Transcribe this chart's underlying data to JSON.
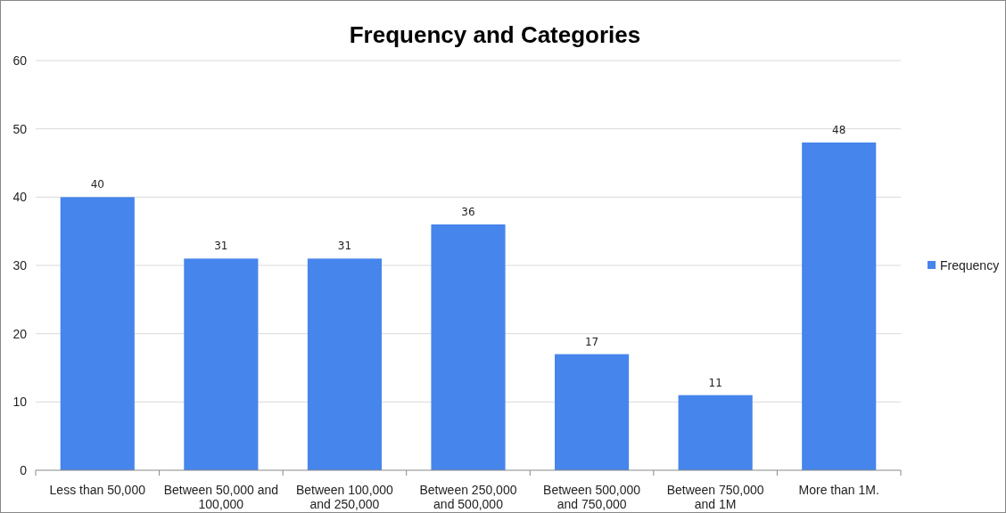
{
  "chart_data": {
    "type": "bar",
    "title": "Frequency and Categories",
    "categories": [
      "Less than 50,000",
      "Between 50,000 and 100,000",
      "Between 100,000 and 250,000",
      "Between 250,000 and 500,000",
      "Between 500,000 and 750,000",
      "Between 750,000 and 1M",
      "More than 1M."
    ],
    "series": [
      {
        "name": "Frequency",
        "color": "#4685ec",
        "values": [
          40,
          31,
          31,
          36,
          17,
          11,
          48
        ]
      }
    ],
    "ylim": [
      0,
      60
    ],
    "yticks": [
      0,
      10,
      20,
      30,
      40,
      50,
      60
    ],
    "grid": "y",
    "legend": "right",
    "data_labels": true
  }
}
